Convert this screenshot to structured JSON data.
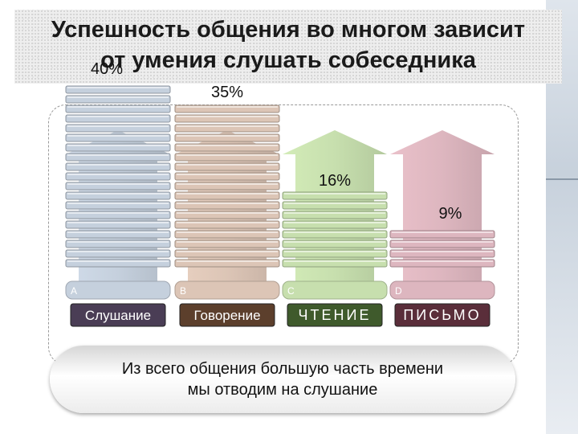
{
  "header": {
    "title_line1": "Успешность общения во многом зависит",
    "title_line2": "от умения слушать собеседника"
  },
  "caption": {
    "line1": "Из всего общения большую часть времени",
    "line2": "мы отводим на слушание"
  },
  "colors": {
    "A": "#c5d0dd",
    "B": "#dcc5b6",
    "C": "#c7dfae",
    "D": "#ddb6bf",
    "label_bg_dark": "#4a3d55",
    "label_bg_brown": "#5c3f2c",
    "label_bg_green": "#3f5a2c",
    "label_bg_maroon": "#5a2e3a"
  },
  "chart_data": {
    "type": "bar",
    "categories": [
      "Слушание",
      "Говорение",
      "ЧТЕНИЕ",
      "ПИСЬМО"
    ],
    "letters": [
      "A",
      "B",
      "C",
      "D"
    ],
    "values": [
      40,
      35,
      16,
      9
    ],
    "value_labels": [
      "40%",
      "35%",
      "16%",
      "9%"
    ],
    "title": "",
    "xlabel": "",
    "ylabel": "",
    "ylim": [
      0,
      45
    ],
    "grid": false,
    "legend": "none"
  }
}
